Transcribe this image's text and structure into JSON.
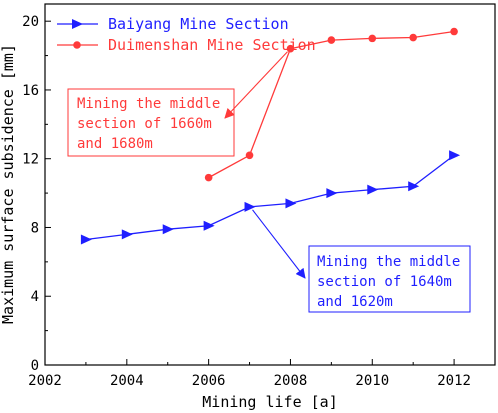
{
  "chart_data": {
    "type": "line",
    "title": "",
    "xlabel": "Mining life [a]",
    "ylabel": "Maximum surface subsidence [mm]",
    "xlim": [
      2002,
      2013
    ],
    "ylim": [
      0,
      21
    ],
    "xticks": [
      2002,
      2004,
      2006,
      2008,
      2010,
      2012
    ],
    "yticks": [
      0,
      4,
      8,
      12,
      16,
      20
    ],
    "grid": false,
    "legend_position": "top-left",
    "series": [
      {
        "name": "Baiyang Mine Section",
        "color": "#1f1fff",
        "marker": "triangle-right",
        "x": [
          2003,
          2004,
          2005,
          2006,
          2007,
          2008,
          2009,
          2010,
          2011,
          2012
        ],
        "y": [
          7.3,
          7.6,
          7.9,
          8.1,
          9.2,
          9.4,
          10.0,
          10.2,
          10.4,
          12.2
        ]
      },
      {
        "name": "Duimenshan Mine Section",
        "color": "#ff3a3a",
        "marker": "circle",
        "x": [
          2006,
          2007,
          2008,
          2009,
          2010,
          2011,
          2012
        ],
        "y": [
          10.9,
          12.2,
          18.4,
          18.9,
          19.0,
          19.05,
          19.4
        ]
      }
    ],
    "annotations": [
      {
        "lines": [
          "Mining the middle",
          "section of 1660m",
          "and 1680m"
        ],
        "color": "#ff3a3a",
        "points_to": [
          2008,
          18.4
        ]
      },
      {
        "lines": [
          "Mining the middle",
          "section of 1640m",
          "and 1620m"
        ],
        "color": "#1f1fff",
        "points_to": [
          2007,
          9.2
        ]
      }
    ]
  }
}
